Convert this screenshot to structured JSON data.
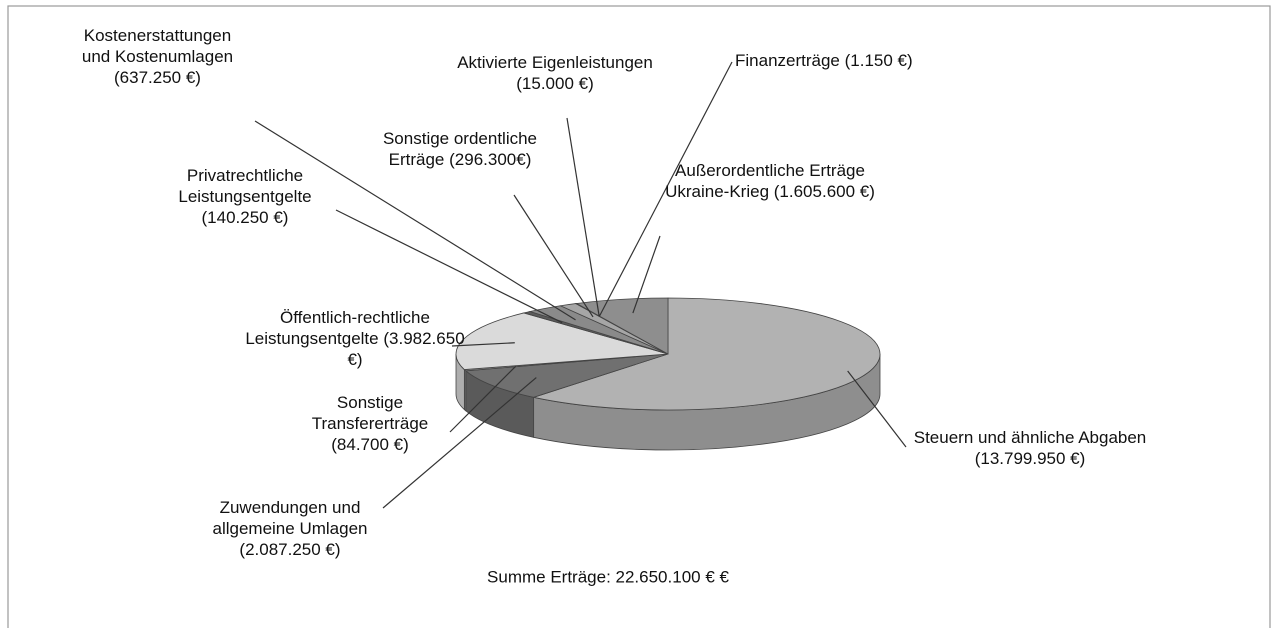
{
  "chart_data": {
    "type": "pie3d",
    "categories": [
      "Steuern und ähnliche Abgaben",
      "Zuwendungen und allgemeine Umlagen",
      "Sonstige Transfererträge",
      "Öffentlich-rechtliche Leistungsentgelte",
      "Privatrechtliche Leistungsentgelte",
      "Kostenerstattungen und Kostenumlagen",
      "Sonstige ordentliche Erträge",
      "Aktivierte Eigenleistungen",
      "Finanzerträge",
      "Außerordentliche Erträge Ukraine-Krieg"
    ],
    "values": [
      13799950,
      2087250,
      84700,
      3982650,
      140250,
      637250,
      296300,
      15000,
      1150,
      1605600
    ],
    "value_labels": [
      "(13.799.950 €)",
      "(2.087.250 €)",
      "(84.700 €)",
      "(3.982.650 €)",
      "(140.250 €)",
      "(637.250 €)",
      "(296.300€)",
      "(15.000 €)",
      "(1.150 €)",
      "(1.605.600 €)"
    ],
    "colors": [
      "#b2b2b2",
      "#707070",
      "#9a9a9a",
      "#dadada",
      "#5a5a5a",
      "#8a8a8a",
      "#a6a6a6",
      "#666666",
      "#444444",
      "#8e8e8e"
    ],
    "annotation": "Summe Erträge: 22.650.100 € €"
  }
}
